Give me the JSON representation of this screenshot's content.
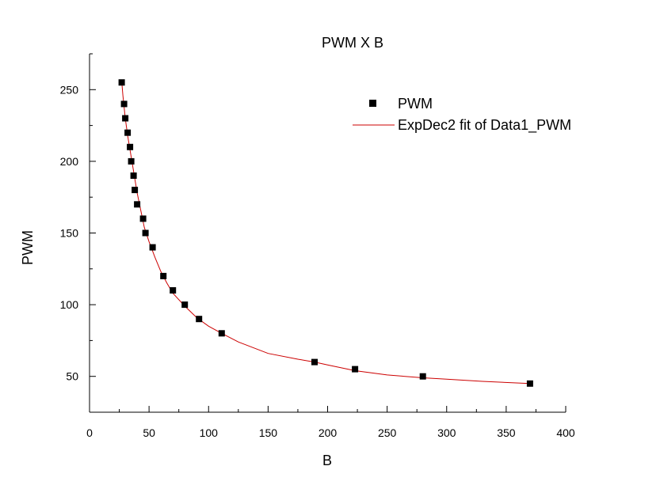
{
  "chart_data": {
    "type": "scatter",
    "title": "PWM X B",
    "xlabel": "B",
    "ylabel": "PWM",
    "xlim": [
      0,
      400
    ],
    "ylim": [
      25,
      275
    ],
    "xticks": [
      0,
      50,
      100,
      150,
      200,
      250,
      300,
      350,
      400
    ],
    "yticks": [
      50,
      100,
      150,
      200,
      250
    ],
    "grid": false,
    "legend_position": "top-right",
    "colors": {
      "points": "#000000",
      "fit": "#cc0000"
    },
    "series": [
      {
        "name": "PWM",
        "kind": "scatter",
        "marker": "square",
        "x": [
          27,
          29,
          30,
          32,
          34,
          35,
          37,
          38,
          40,
          45,
          47,
          53,
          62,
          70,
          80,
          92,
          111,
          189,
          223,
          280,
          370
        ],
        "y": [
          255,
          240,
          230,
          220,
          210,
          200,
          190,
          180,
          170,
          160,
          150,
          140,
          120,
          110,
          100,
          90,
          80,
          60,
          55,
          50,
          45
        ]
      },
      {
        "name": "ExpDec2 fit of Data1_PWM",
        "kind": "line",
        "x": [
          27,
          28,
          29,
          30,
          32,
          34,
          36,
          38,
          40,
          43,
          46,
          50,
          55,
          60,
          65,
          70,
          80,
          90,
          100,
          111,
          125,
          150,
          175,
          189,
          200,
          223,
          250,
          280,
          300,
          330,
          370
        ],
        "y": [
          256,
          246,
          238,
          230,
          218,
          208,
          198,
          188,
          178,
          166,
          154,
          144,
          133,
          123,
          115,
          108,
          99,
          91,
          85,
          80,
          74,
          66,
          62,
          60,
          58,
          54,
          51,
          49,
          48,
          46.5,
          45
        ]
      }
    ]
  }
}
